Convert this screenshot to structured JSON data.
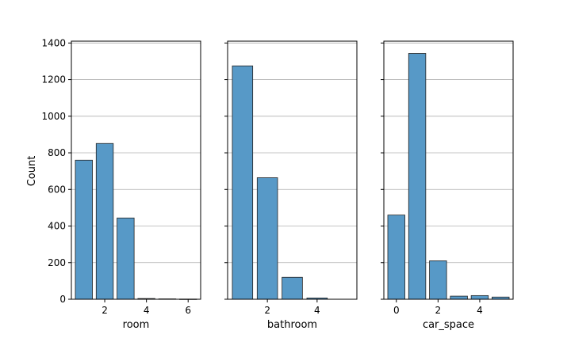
{
  "figure": {
    "ylabel": "Count"
  },
  "chart_data": [
    {
      "type": "bar",
      "xlabel": "room",
      "ylabel": "Count",
      "x": [
        1,
        2,
        3,
        4,
        5,
        6
      ],
      "values": [
        760,
        851,
        444,
        4,
        2,
        1
      ],
      "xlim": [
        0.4,
        6.6
      ],
      "ylim": [
        0,
        1410
      ],
      "xticks": [
        2,
        4,
        6
      ],
      "yticks": [
        0,
        200,
        400,
        600,
        800,
        1000,
        1200,
        1400
      ],
      "grid": "y"
    },
    {
      "type": "bar",
      "xlabel": "bathroom",
      "ylabel": "",
      "x": [
        1,
        2,
        3,
        4
      ],
      "values": [
        1275,
        664,
        120,
        7
      ],
      "xlim": [
        0.4,
        5.6
      ],
      "ylim": [
        0,
        1410
      ],
      "xticks": [
        2,
        4
      ],
      "yticks": [
        0,
        200,
        400,
        600,
        800,
        1000,
        1200,
        1400
      ],
      "grid": "y"
    },
    {
      "type": "bar",
      "xlabel": "car_space",
      "ylabel": "",
      "x": [
        0,
        1,
        2,
        3,
        4,
        5
      ],
      "values": [
        460,
        1343,
        210,
        17,
        20,
        12
      ],
      "xlim": [
        -0.6,
        5.6
      ],
      "ylim": [
        0,
        1410
      ],
      "xticks": [
        0,
        2,
        4
      ],
      "yticks": [
        0,
        200,
        400,
        600,
        800,
        1000,
        1200,
        1400
      ],
      "grid": "y"
    }
  ],
  "colors": {
    "bar_fill": "#5799c7",
    "bar_edge": "#222222",
    "grid": "#b0b0b0",
    "axis": "#000000"
  }
}
